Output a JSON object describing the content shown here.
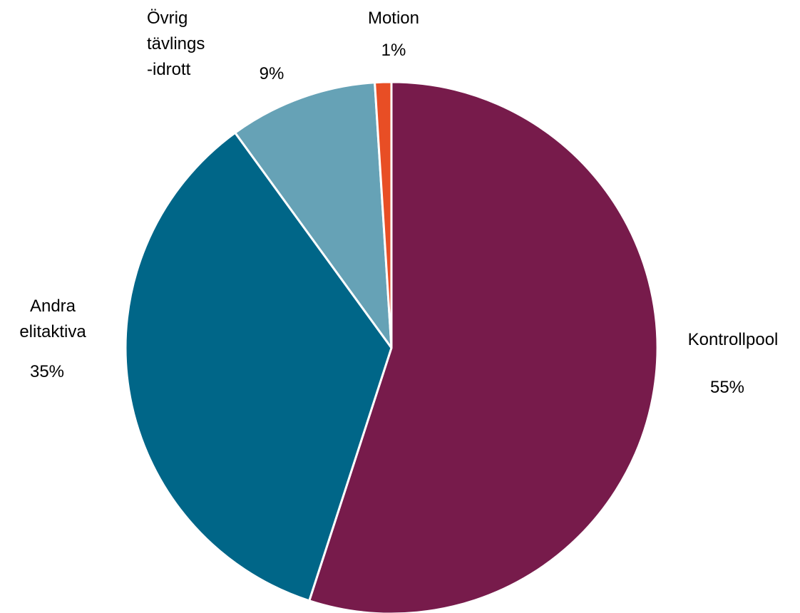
{
  "chart_data": {
    "type": "pie",
    "title": "",
    "start_angle_deg": 0,
    "direction": "clockwise",
    "slices": [
      {
        "name": "Kontrollpool",
        "label_lines": [
          "Kontrollpool"
        ],
        "value": 55,
        "value_label": "55%",
        "color": "#771B4B"
      },
      {
        "name": "Andra elitaktiva",
        "label_lines": [
          "Andra",
          "elitaktiva"
        ],
        "value": 35,
        "value_label": "35%",
        "color": "#006688"
      },
      {
        "name": "Övrig tävlingsidrott",
        "label_lines": [
          "Övrig",
          "tävlings",
          "-idrott"
        ],
        "value": 9,
        "value_label": "9%",
        "color": "#66A2B6"
      },
      {
        "name": "Motion",
        "label_lines": [
          "Motion"
        ],
        "value": 1,
        "value_label": "1%",
        "color": "#E84E25"
      }
    ]
  }
}
